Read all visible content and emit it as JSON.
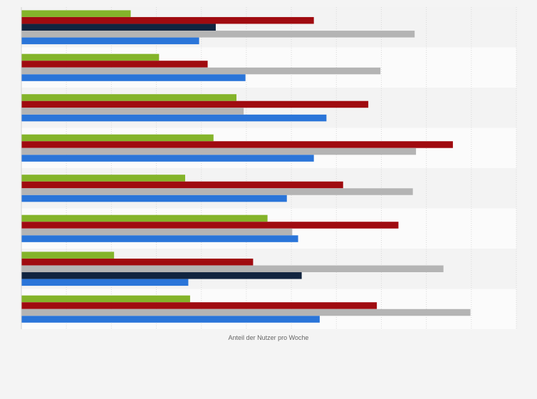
{
  "chart_data": {
    "type": "bar",
    "orientation": "horizontal",
    "title": "",
    "xlabel": "Anteil der Nutzer pro Woche",
    "ylabel": "",
    "xlim": [
      0,
      110
    ],
    "grid": true,
    "legend": "none",
    "groups": [
      {
        "bars": [
          {
            "value": 24.3,
            "color": "#84b42a"
          },
          {
            "value": 65.0,
            "color": "#a00b10"
          },
          {
            "value": 43.2,
            "color": "#11243f"
          },
          {
            "value": 87.4,
            "color": "#b4b4b4"
          },
          {
            "value": 39.5,
            "color": "#2a75d9"
          }
        ]
      },
      {
        "bars": [
          {
            "value": 30.6,
            "color": "#84b42a"
          },
          {
            "value": 41.4,
            "color": "#a00b10"
          },
          {
            "value": 79.8,
            "color": "#b4b4b4"
          },
          {
            "value": 49.8,
            "color": "#2a75d9"
          }
        ]
      },
      {
        "bars": [
          {
            "value": 47.8,
            "color": "#84b42a"
          },
          {
            "value": 77.1,
            "color": "#a00b10"
          },
          {
            "value": 49.4,
            "color": "#b4b4b4"
          },
          {
            "value": 67.8,
            "color": "#2a75d9"
          }
        ]
      },
      {
        "bars": [
          {
            "value": 42.7,
            "color": "#84b42a"
          },
          {
            "value": 95.9,
            "color": "#a00b10"
          },
          {
            "value": 87.7,
            "color": "#b4b4b4"
          },
          {
            "value": 65.0,
            "color": "#2a75d9"
          }
        ]
      },
      {
        "bars": [
          {
            "value": 36.4,
            "color": "#84b42a"
          },
          {
            "value": 71.5,
            "color": "#a00b10"
          },
          {
            "value": 87.0,
            "color": "#b4b4b4"
          },
          {
            "value": 59.0,
            "color": "#2a75d9"
          }
        ]
      },
      {
        "bars": [
          {
            "value": 54.7,
            "color": "#84b42a"
          },
          {
            "value": 83.8,
            "color": "#a00b10"
          },
          {
            "value": 60.2,
            "color": "#b4b4b4"
          },
          {
            "value": 61.5,
            "color": "#2a75d9"
          }
        ]
      },
      {
        "bars": [
          {
            "value": 20.6,
            "color": "#84b42a"
          },
          {
            "value": 51.5,
            "color": "#a00b10"
          },
          {
            "value": 93.8,
            "color": "#b4b4b4"
          },
          {
            "value": 62.3,
            "color": "#11243f"
          },
          {
            "value": 37.1,
            "color": "#2a75d9"
          }
        ]
      },
      {
        "bars": [
          {
            "value": 37.5,
            "color": "#84b42a"
          },
          {
            "value": 79.0,
            "color": "#a00b10"
          },
          {
            "value": 99.8,
            "color": "#b4b4b4"
          },
          {
            "value": 66.3,
            "color": "#2a75d9"
          }
        ]
      }
    ]
  }
}
